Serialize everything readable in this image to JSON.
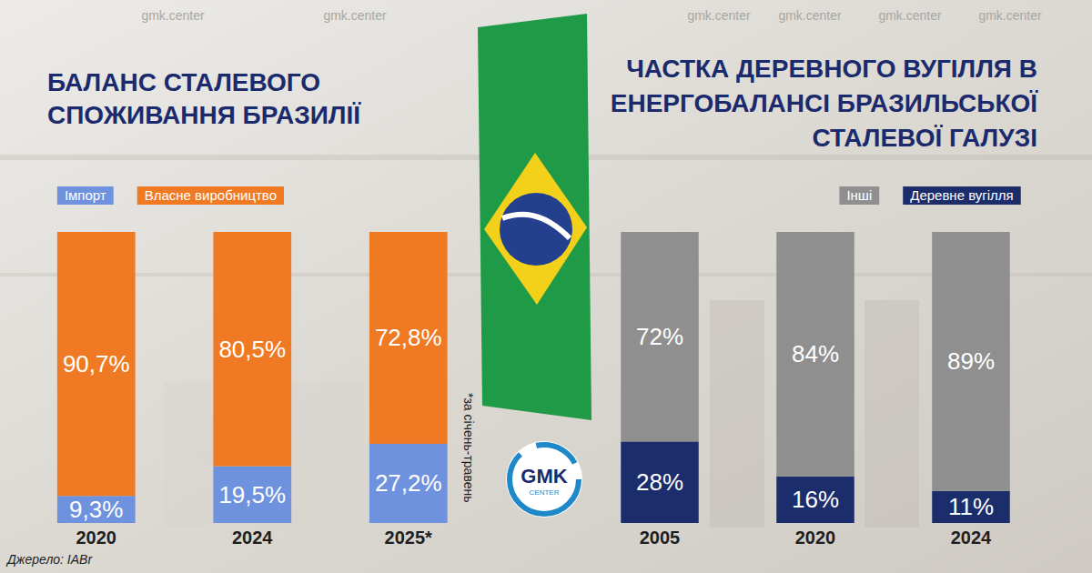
{
  "chart_data": [
    {
      "type": "bar",
      "stacked": true,
      "title": "БАЛАНС СТАЛЕВОГО СПОЖИВАННЯ БРАЗИЛІЇ",
      "categories": [
        "2020",
        "2024",
        "2025*"
      ],
      "series": [
        {
          "name": "Імпорт",
          "color": "#6f92de",
          "values": [
            9.3,
            19.5,
            27.2
          ],
          "value_labels": [
            "9,3%",
            "19,5%",
            "27,2%"
          ]
        },
        {
          "name": "Власне виробництво",
          "color": "#f07a23",
          "values": [
            90.7,
            80.5,
            72.8
          ],
          "value_labels": [
            "90,7%",
            "80,5%",
            "72,8%"
          ]
        }
      ],
      "ylim": [
        0,
        100
      ],
      "data_labels": true,
      "tick_labels": "x",
      "legend": "top left",
      "annotations": [
        "*за січень-травень"
      ]
    },
    {
      "type": "bar",
      "stacked": true,
      "title": "ЧАСТКА ДЕРЕВНОГО ВУГІЛЛЯ В ЕНЕРГОБАЛАНСІ БРАЗИЛЬСЬКОЇ СТАЛЕВОЇ ГАЛУЗІ",
      "categories": [
        "2005",
        "2020",
        "2024"
      ],
      "series": [
        {
          "name": "Деревне вугілля",
          "color": "#1b2d6b",
          "values": [
            28,
            16,
            11
          ],
          "value_labels": [
            "28%",
            "16%",
            "11%"
          ]
        },
        {
          "name": "Інші",
          "color": "#8f8f8f",
          "values": [
            72,
            84,
            89
          ],
          "value_labels": [
            "72%",
            "84%",
            "89%"
          ]
        }
      ],
      "ylim": [
        0,
        100
      ],
      "data_labels": true,
      "tick_labels": "x",
      "legend": "top right"
    }
  ],
  "source": "Джерело: IABr",
  "logo": {
    "text": "GMK",
    "subtext": "CENTER"
  },
  "watermark": "gmk.center"
}
